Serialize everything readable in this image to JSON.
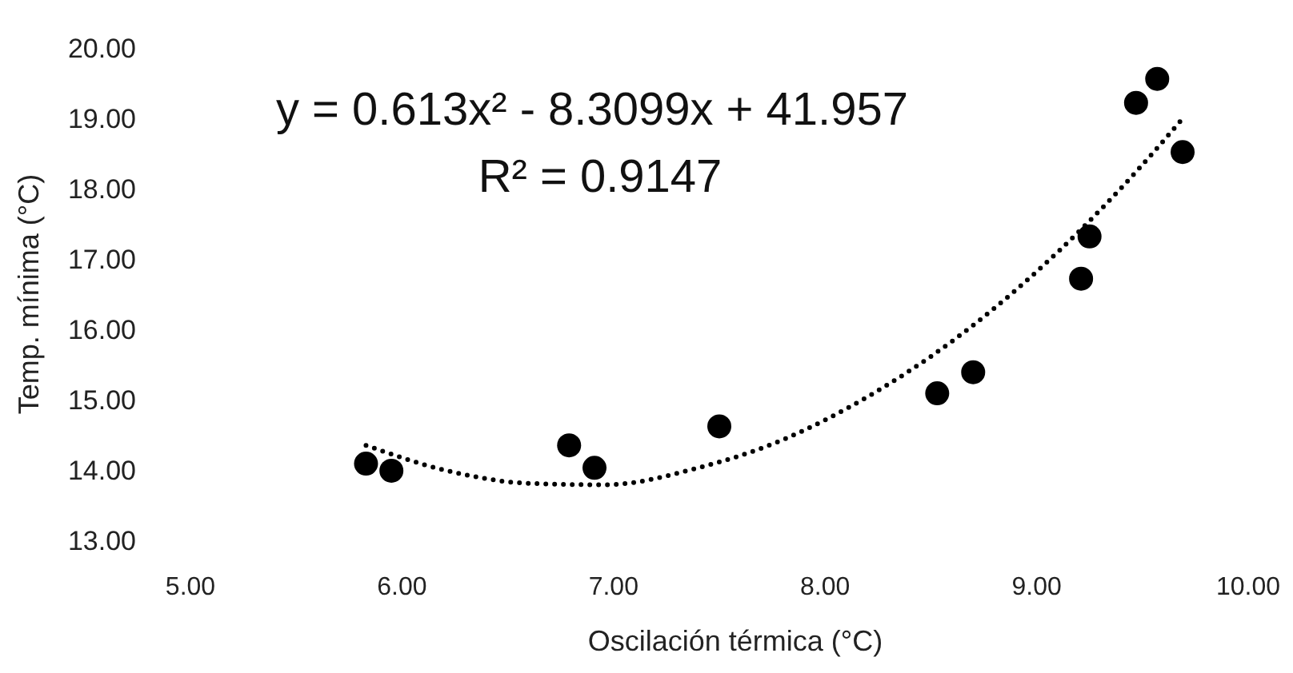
{
  "chart_data": {
    "type": "scatter",
    "xlabel": "Oscilación térmica (°C)",
    "ylabel": "Temp. mínima (°C)",
    "annotations": [
      "y = 0.613x² - 8.3099x + 41.957",
      "R² = 0.9147"
    ],
    "x": [
      5.83,
      5.95,
      6.79,
      6.91,
      7.5,
      8.53,
      8.7,
      9.21,
      9.25,
      9.47,
      9.57,
      9.69
    ],
    "series": [
      {
        "color": "#000000",
        "marker": "circle",
        "values": [
          14.09,
          13.99,
          14.35,
          14.03,
          14.62,
          15.09,
          15.39,
          16.72,
          17.32,
          19.22,
          19.56,
          18.52
        ]
      },
      {
        "type": "line",
        "color": "#000000",
        "line_style": "dotted",
        "marker": "none",
        "x": [
          5.83,
          6.2,
          6.6,
          6.96,
          7.4,
          7.8,
          8.2,
          8.6,
          9.0,
          9.4,
          9.7
        ],
        "values": [
          14.35,
          14.0,
          13.81,
          13.79,
          14.03,
          14.43,
          15.04,
          15.83,
          16.82,
          18.01,
          19.03
        ]
      }
    ],
    "grid": false,
    "xlim": [
      5,
      10
    ],
    "xticks": [
      {
        "value": 5,
        "label": "5.00"
      },
      {
        "value": 6,
        "label": "6.00"
      },
      {
        "value": 7,
        "label": "7.00"
      },
      {
        "value": 8,
        "label": "8.00"
      },
      {
        "value": 9,
        "label": "9.00"
      },
      {
        "value": 10,
        "label": "10.00"
      }
    ],
    "ylim": [
      13,
      20
    ],
    "yticks": [
      {
        "value": 13,
        "label": "13.00"
      },
      {
        "value": 14,
        "label": "14.00"
      },
      {
        "value": 15,
        "label": "15.00"
      },
      {
        "value": 16,
        "label": "16.00"
      },
      {
        "value": 17,
        "label": "17.00"
      },
      {
        "value": 18,
        "label": "18.00"
      },
      {
        "value": 19,
        "label": "19.00"
      },
      {
        "value": 20,
        "label": "20.00"
      }
    ]
  }
}
